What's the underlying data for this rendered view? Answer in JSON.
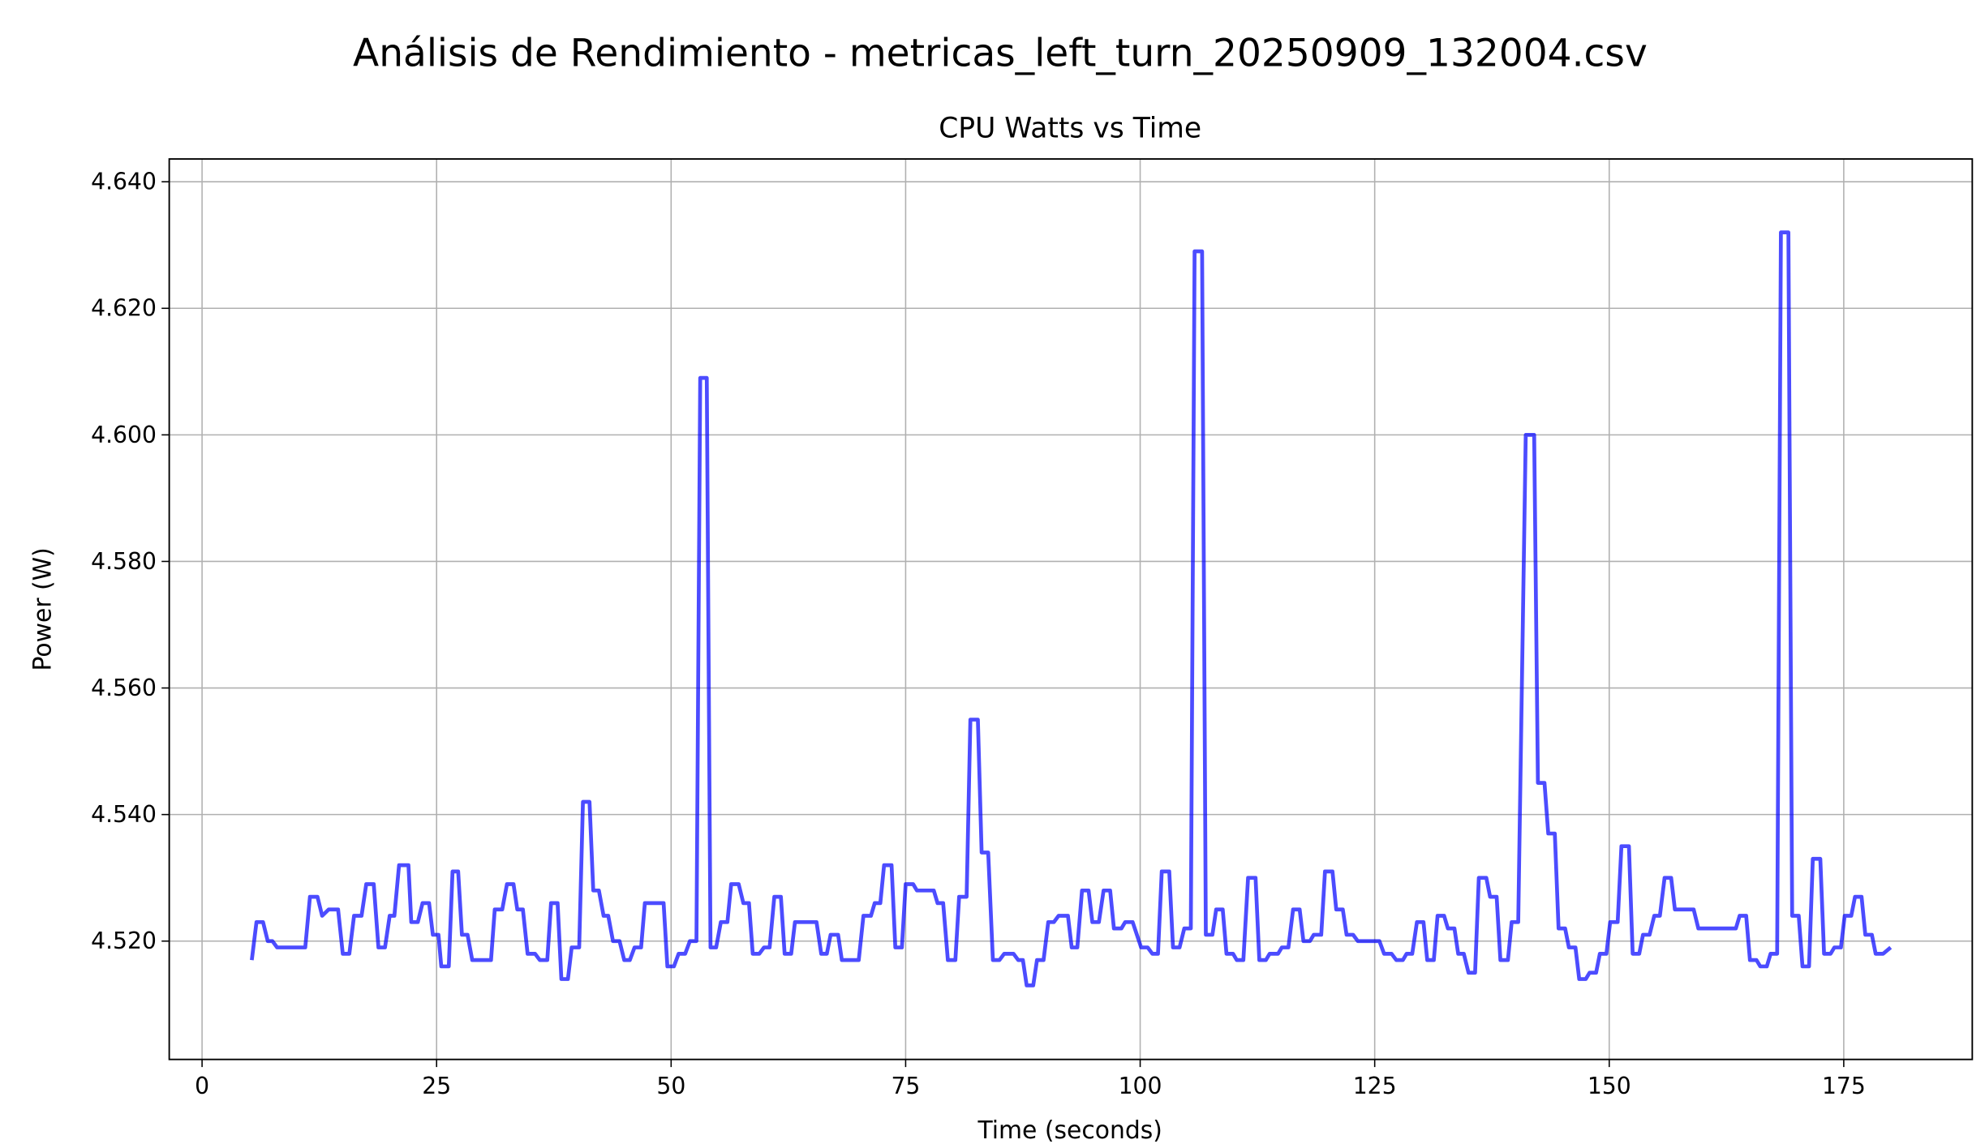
{
  "chart_data": {
    "type": "line",
    "title": "Análisis de Rendimiento - metricas_left_turn_20250909_132004.csv",
    "subtitle": "CPU Watts vs Time",
    "x_label": "Time (seconds)",
    "y_label": "Power (W)",
    "xlim": [
      -3.5,
      188.7
    ],
    "ylim": [
      4.5013,
      4.6436
    ],
    "xticks": [
      0,
      25,
      50,
      75,
      100,
      125,
      150,
      175
    ],
    "yticks": [
      {
        "value": 4.52,
        "label": "4.520"
      },
      {
        "value": 4.54,
        "label": "4.540"
      },
      {
        "value": 4.56,
        "label": "4.560"
      },
      {
        "value": 4.58,
        "label": "4.580"
      },
      {
        "value": 4.6,
        "label": "4.600"
      },
      {
        "value": 4.62,
        "label": "4.620"
      },
      {
        "value": 4.64,
        "label": "4.640"
      }
    ],
    "grid": true,
    "x": [
      5.3,
      5.8,
      6.5,
      7,
      7.5,
      8,
      11,
      11.5,
      12.3,
      12.8,
      13.5,
      14.5,
      15,
      15.7,
      16.2,
      17,
      17.5,
      18.3,
      18.8,
      19.5,
      20,
      20.5,
      21,
      22,
      22.3,
      23,
      23.5,
      24.2,
      24.6,
      25.2,
      25.5,
      26.3,
      26.7,
      27.3,
      27.7,
      28.3,
      28.8,
      30.8,
      31.2,
      32,
      32.5,
      33.2,
      33.6,
      34.2,
      34.7,
      35.5,
      36,
      36.8,
      37.2,
      37.9,
      38.3,
      39,
      39.4,
      40.2,
      40.6,
      41.3,
      41.7,
      42.3,
      42.8,
      43.3,
      43.8,
      44.5,
      45,
      45.6,
      46.1,
      46.8,
      47.2,
      49.2,
      49.6,
      50.3,
      50.8,
      51.5,
      52,
      52.7,
      53.1,
      53.8,
      54.2,
      54.8,
      55.3,
      56,
      56.4,
      57.2,
      57.7,
      58.3,
      58.7,
      59.4,
      59.9,
      60.5,
      61,
      61.7,
      62.1,
      62.8,
      63.2,
      65.5,
      66,
      66.6,
      67,
      67.8,
      68.2,
      70,
      70.5,
      71.3,
      71.7,
      72.3,
      72.7,
      73.5,
      73.9,
      74.6,
      75,
      75.8,
      76.2,
      78,
      78.4,
      79,
      79.5,
      80.3,
      80.7,
      81.5,
      81.9,
      82.7,
      83.1,
      83.8,
      84.3,
      85,
      85.5,
      86.5,
      87,
      87.5,
      87.9,
      88.6,
      89,
      89.7,
      90.2,
      90.8,
      91.3,
      92.3,
      92.7,
      93.3,
      93.8,
      94.5,
      94.9,
      95.6,
      96.1,
      96.8,
      97.2,
      98,
      98.4,
      99.2,
      100.1,
      100.8,
      101.3,
      101.9,
      102.3,
      103.1,
      103.5,
      104.2,
      104.7,
      105.4,
      105.8,
      106.6,
      107,
      107.7,
      108.1,
      108.8,
      109.2,
      109.9,
      110.3,
      111,
      111.5,
      112.3,
      112.7,
      113.4,
      113.8,
      114.7,
      115.1,
      115.8,
      116.3,
      117,
      117.4,
      118.1,
      118.5,
      119.3,
      119.7,
      120.5,
      120.9,
      121.6,
      122,
      122.7,
      123.2,
      125.5,
      126,
      126.8,
      127.3,
      128,
      128.4,
      129,
      129.5,
      130.2,
      130.6,
      131.3,
      131.7,
      132.4,
      132.8,
      133.5,
      133.9,
      134.5,
      135,
      135.7,
      136.1,
      136.9,
      137.3,
      138,
      138.4,
      139.2,
      139.6,
      140.3,
      141.1,
      142,
      142.4,
      143.1,
      143.5,
      144.2,
      144.6,
      145.3,
      145.7,
      146.4,
      146.8,
      147.5,
      147.9,
      148.6,
      149,
      149.7,
      150.1,
      150.9,
      151.3,
      152.1,
      152.5,
      153.2,
      153.6,
      154.3,
      154.8,
      155.4,
      155.9,
      156.6,
      157,
      159,
      159.5,
      163.5,
      163.9,
      164.6,
      165,
      165.7,
      166.1,
      166.8,
      167.2,
      167.9,
      168.3,
      169.1,
      169.5,
      170.2,
      170.6,
      171.3,
      171.7,
      172.5,
      172.9,
      173.6,
      174,
      174.7,
      175.1,
      175.8,
      176.2,
      176.9,
      177.3,
      178,
      178.4,
      179.2,
      180
    ],
    "series": [
      {
        "name": "CPU Watts",
        "color": "#0000ff",
        "values": [
          4.517,
          4.523,
          4.523,
          4.52,
          4.52,
          4.519,
          4.519,
          4.527,
          4.527,
          4.524,
          4.525,
          4.525,
          4.518,
          4.518,
          4.524,
          4.524,
          4.529,
          4.529,
          4.519,
          4.519,
          4.524,
          4.524,
          4.532,
          4.532,
          4.523,
          4.523,
          4.526,
          4.526,
          4.521,
          4.521,
          4.516,
          4.516,
          4.531,
          4.531,
          4.521,
          4.521,
          4.517,
          4.517,
          4.525,
          4.525,
          4.529,
          4.529,
          4.525,
          4.525,
          4.518,
          4.518,
          4.517,
          4.517,
          4.526,
          4.526,
          4.514,
          4.514,
          4.519,
          4.519,
          4.542,
          4.542,
          4.528,
          4.528,
          4.524,
          4.524,
          4.52,
          4.52,
          4.517,
          4.517,
          4.519,
          4.519,
          4.526,
          4.526,
          4.516,
          4.516,
          4.518,
          4.518,
          4.52,
          4.52,
          4.609,
          4.609,
          4.519,
          4.519,
          4.523,
          4.523,
          4.529,
          4.529,
          4.526,
          4.526,
          4.518,
          4.518,
          4.519,
          4.519,
          4.527,
          4.527,
          4.518,
          4.518,
          4.523,
          4.523,
          4.518,
          4.518,
          4.521,
          4.521,
          4.517,
          4.517,
          4.524,
          4.524,
          4.526,
          4.526,
          4.532,
          4.532,
          4.519,
          4.519,
          4.529,
          4.529,
          4.528,
          4.528,
          4.526,
          4.526,
          4.517,
          4.517,
          4.527,
          4.527,
          4.555,
          4.555,
          4.534,
          4.534,
          4.517,
          4.517,
          4.518,
          4.518,
          4.517,
          4.517,
          4.513,
          4.513,
          4.517,
          4.517,
          4.523,
          4.523,
          4.524,
          4.524,
          4.519,
          4.519,
          4.528,
          4.528,
          4.523,
          4.523,
          4.528,
          4.528,
          4.522,
          4.522,
          4.523,
          4.523,
          4.519,
          4.519,
          4.518,
          4.518,
          4.531,
          4.531,
          4.519,
          4.519,
          4.522,
          4.522,
          4.629,
          4.629,
          4.521,
          4.521,
          4.525,
          4.525,
          4.518,
          4.518,
          4.517,
          4.517,
          4.53,
          4.53,
          4.517,
          4.517,
          4.518,
          4.518,
          4.519,
          4.519,
          4.525,
          4.525,
          4.52,
          4.52,
          4.521,
          4.521,
          4.531,
          4.531,
          4.525,
          4.525,
          4.521,
          4.521,
          4.52,
          4.52,
          4.518,
          4.518,
          4.517,
          4.517,
          4.518,
          4.518,
          4.523,
          4.523,
          4.517,
          4.517,
          4.524,
          4.524,
          4.522,
          4.522,
          4.518,
          4.518,
          4.515,
          4.515,
          4.53,
          4.53,
          4.527,
          4.527,
          4.517,
          4.517,
          4.523,
          4.523,
          4.6,
          4.6,
          4.545,
          4.545,
          4.537,
          4.537,
          4.522,
          4.522,
          4.519,
          4.519,
          4.514,
          4.514,
          4.515,
          4.515,
          4.518,
          4.518,
          4.523,
          4.523,
          4.535,
          4.535,
          4.518,
          4.518,
          4.521,
          4.521,
          4.524,
          4.524,
          4.53,
          4.53,
          4.525,
          4.525,
          4.522,
          4.522,
          4.524,
          4.524,
          4.517,
          4.517,
          4.516,
          4.516,
          4.518,
          4.518,
          4.632,
          4.632,
          4.524,
          4.524,
          4.516,
          4.516,
          4.533,
          4.533,
          4.518,
          4.518,
          4.519,
          4.519,
          4.524,
          4.524,
          4.527,
          4.527,
          4.521,
          4.521,
          4.518,
          4.518,
          4.519
        ]
      }
    ]
  }
}
